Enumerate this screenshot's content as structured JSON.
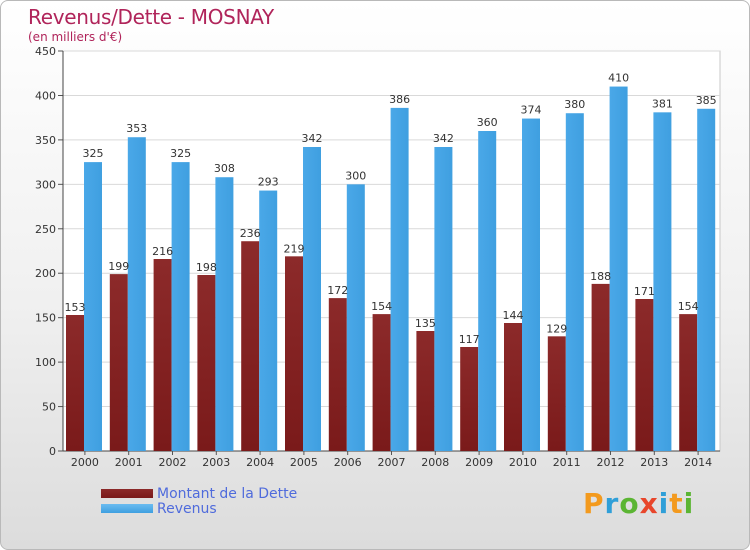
{
  "header": {
    "title": "Revenus/Dette - MOSNAY",
    "subtitle": "(en milliers d'€)"
  },
  "brand": {
    "logo_text": "Proxiti"
  },
  "colors": {
    "debt": "#7a1a1a",
    "revenus": "#3f9fe0",
    "title": "#b0245a",
    "legend_text": "#4f6bdc"
  },
  "chart_data": {
    "type": "bar",
    "title": "Revenus/Dette - MOSNAY",
    "subtitle": "(en milliers d'€)",
    "xlabel": "",
    "ylabel": "",
    "ylim": [
      0,
      450
    ],
    "yticks": [
      0,
      50,
      100,
      150,
      200,
      250,
      300,
      350,
      400,
      450
    ],
    "grid": true,
    "legend_position": "bottom-left",
    "categories": [
      "2000",
      "2001",
      "2002",
      "2003",
      "2004",
      "2005",
      "2006",
      "2007",
      "2008",
      "2009",
      "2010",
      "2011",
      "2012",
      "2013",
      "2014"
    ],
    "series": [
      {
        "name": "Montant de la Dette",
        "values": [
          153,
          199,
          216,
          198,
          236,
          219,
          172,
          154,
          135,
          117,
          144,
          129,
          188,
          171,
          154
        ]
      },
      {
        "name": "Revenus",
        "values": [
          325,
          353,
          325,
          308,
          293,
          342,
          300,
          386,
          342,
          360,
          374,
          380,
          410,
          381,
          385
        ]
      }
    ]
  }
}
